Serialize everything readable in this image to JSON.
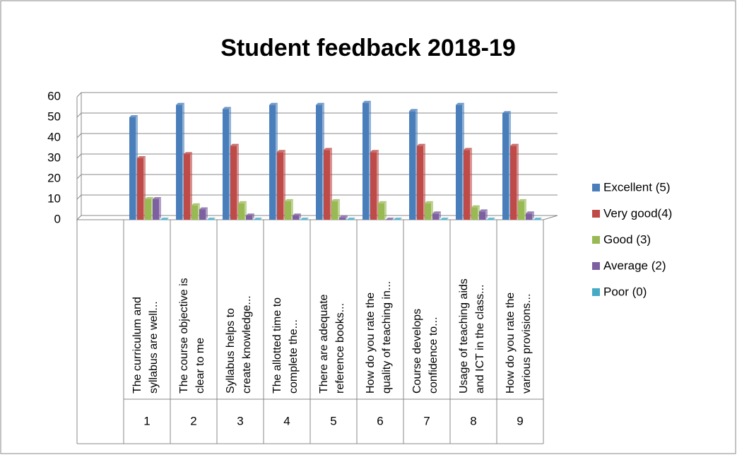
{
  "chart_data": {
    "type": "bar3d",
    "title": "Student feedback 2018-19",
    "categories": [
      null,
      "1",
      "2",
      "3",
      "4",
      "5",
      "6",
      "7",
      "8",
      "9"
    ],
    "category_descriptions": [
      null,
      [
        "The curriculum and",
        "syllabus are well..."
      ],
      [
        "The course objective is",
        "clear to me"
      ],
      [
        "Syllabus helps to",
        "create knowledge..."
      ],
      [
        "The allotted time to",
        "complete the..."
      ],
      [
        "There are adequate",
        "reference books..."
      ],
      [
        "How do you rate the",
        "quality of teaching in..."
      ],
      [
        "Course develops",
        "confidence to..."
      ],
      [
        "Usage of teaching aids",
        "and ICT in the class..."
      ],
      [
        "How do you rate the",
        "various provisions..."
      ]
    ],
    "series": [
      {
        "name": "Excellent (5)",
        "color": "#4a7ebb",
        "values": [
          null,
          50,
          56,
          54,
          56,
          56,
          57,
          53,
          56,
          52
        ]
      },
      {
        "name": "Very good(4)",
        "color": "#be4b48",
        "values": [
          null,
          30,
          32,
          36,
          33,
          34,
          33,
          36,
          34,
          36
        ]
      },
      {
        "name": "Good (3)",
        "color": "#98b954",
        "values": [
          null,
          10,
          7,
          8,
          9,
          9,
          8,
          8,
          6,
          9
        ]
      },
      {
        "name": "Average (2)",
        "color": "#7d60a0",
        "values": [
          null,
          10,
          5,
          2,
          2,
          1,
          0,
          3,
          4,
          3
        ]
      },
      {
        "name": "Poor (0)",
        "color": "#46aac5",
        "values": [
          null,
          0,
          0,
          0,
          0,
          0,
          0,
          0,
          0,
          0
        ]
      }
    ],
    "ylim": [
      0,
      60
    ],
    "yticks": [
      0,
      10,
      20,
      30,
      40,
      50,
      60
    ],
    "grid": true,
    "legend": "right"
  }
}
